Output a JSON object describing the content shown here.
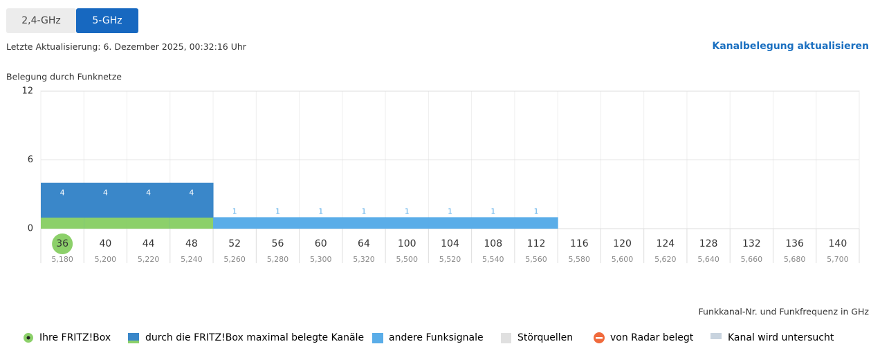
{
  "tabs": [
    {
      "label": "2,4-GHz",
      "active": false
    },
    {
      "label": "5-GHz",
      "active": true
    }
  ],
  "last_update": "Letzte Aktualisierung: 6. Dezember 2025, 00:32:16 Uhr",
  "refresh_link": "Kanalbelegung aktualisieren",
  "chart_data": {
    "type": "bar",
    "y_label": "Belegung durch Funknetze",
    "x_label": "Funkkanal-Nr. und Funkfrequenz in GHz",
    "categories": [
      "36",
      "40",
      "44",
      "48",
      "52",
      "56",
      "60",
      "64",
      "100",
      "104",
      "108",
      "112",
      "116",
      "120",
      "124",
      "128",
      "132",
      "136",
      "140"
    ],
    "frequencies": [
      "5,180",
      "5,200",
      "5,220",
      "5,240",
      "5,260",
      "5,280",
      "5,300",
      "5,320",
      "5,500",
      "5,520",
      "5,540",
      "5,560",
      "5,580",
      "5,600",
      "5,620",
      "5,640",
      "5,660",
      "5,680",
      "5,700"
    ],
    "own_channel": "36",
    "ylim": [
      0,
      12
    ],
    "yticks": [
      0,
      6,
      12
    ],
    "grid": true,
    "series": [
      {
        "name": "durch die FRITZ!Box maximal belegte Kanäle",
        "color": "#3a87c9",
        "base_color": "#8cd06a",
        "label_position": "inside",
        "values": [
          4,
          4,
          4,
          4,
          null,
          null,
          null,
          null,
          null,
          null,
          null,
          null,
          null,
          null,
          null,
          null,
          null,
          null,
          null
        ]
      },
      {
        "name": "andere Funksignale",
        "color": "#5aade8",
        "label_position": "above",
        "values": [
          null,
          null,
          null,
          null,
          1,
          1,
          1,
          1,
          1,
          1,
          1,
          1,
          null,
          null,
          null,
          null,
          null,
          null,
          null
        ]
      }
    ],
    "other_legend": [
      "Ihre FRITZ!Box",
      "Störquellen",
      "von Radar belegt",
      "Kanal wird untersucht"
    ]
  }
}
